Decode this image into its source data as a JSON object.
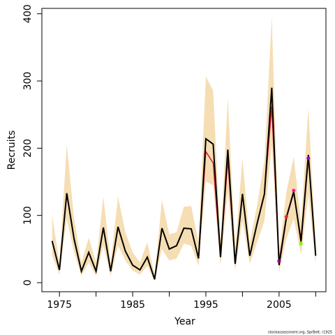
{
  "chart_data": {
    "type": "line",
    "xlabel": "Year",
    "ylabel": "Recruits",
    "footnote": "stockassessment.org, SprBelt, r1925",
    "x": [
      1974,
      1975,
      1976,
      1977,
      1978,
      1979,
      1980,
      1981,
      1982,
      1983,
      1984,
      1985,
      1986,
      1987,
      1988,
      1989,
      1990,
      1991,
      1992,
      1993,
      1994,
      1995,
      1996,
      1997,
      1998,
      1999,
      2000,
      2001,
      2002,
      2003,
      2004,
      2005,
      2006,
      2007,
      2008,
      2009,
      2010
    ],
    "band": {
      "color": "#f5deb3",
      "upper": [
        100,
        30,
        205,
        95,
        30,
        67,
        30,
        128,
        30,
        128,
        75,
        45,
        30,
        60,
        12,
        123,
        72,
        75,
        113,
        114,
        60,
        307,
        285,
        60,
        275,
        50,
        185,
        60,
        115,
        182,
        395,
        45,
        135,
        187,
        90,
        260,
        55
      ],
      "lower": [
        40,
        12,
        95,
        45,
        10,
        30,
        10,
        55,
        10,
        55,
        33,
        18,
        12,
        25,
        2,
        50,
        33,
        36,
        58,
        55,
        25,
        150,
        145,
        25,
        135,
        18,
        92,
        28,
        60,
        92,
        205,
        15,
        65,
        95,
        42,
        130,
        28
      ]
    },
    "series": [
      {
        "color": "#dc143c",
        "values": [
          62,
          19,
          133,
          65,
          17,
          45,
          17,
          82,
          17,
          83,
          47,
          26,
          19,
          38,
          5,
          81,
          50,
          55,
          81,
          80,
          36,
          195,
          178,
          38,
          183,
          28,
          132,
          40,
          88,
          132,
          262,
          32,
          98,
          137,
          58,
          185,
          null
        ]
      },
      {
        "color": "#000000",
        "values": [
          62,
          19,
          133,
          65,
          17,
          45,
          17,
          82,
          17,
          83,
          47,
          26,
          19,
          38,
          5,
          81,
          50,
          55,
          81,
          80,
          36,
          214,
          206,
          38,
          198,
          28,
          132,
          40,
          88,
          132,
          290,
          26,
          97,
          135,
          62,
          190,
          40
        ]
      }
    ],
    "points": {
      "x": [
        2005,
        2006,
        2007,
        2008,
        2009
      ],
      "values": [
        32,
        98,
        137,
        58,
        185
      ],
      "colors": [
        "#8b008b",
        "#ff2020",
        "#ff1493",
        "#7cfc00",
        "#9400d3"
      ]
    },
    "xlim": [
      1972.6,
      2011.4
    ],
    "ylim": [
      -13.5,
      408
    ],
    "xticks": [
      1975,
      1985,
      1995,
      2005
    ],
    "xminor_ticks": [
      1980,
      1990,
      2000,
      2010
    ],
    "yticks": [
      0,
      100,
      200,
      300,
      400
    ]
  }
}
